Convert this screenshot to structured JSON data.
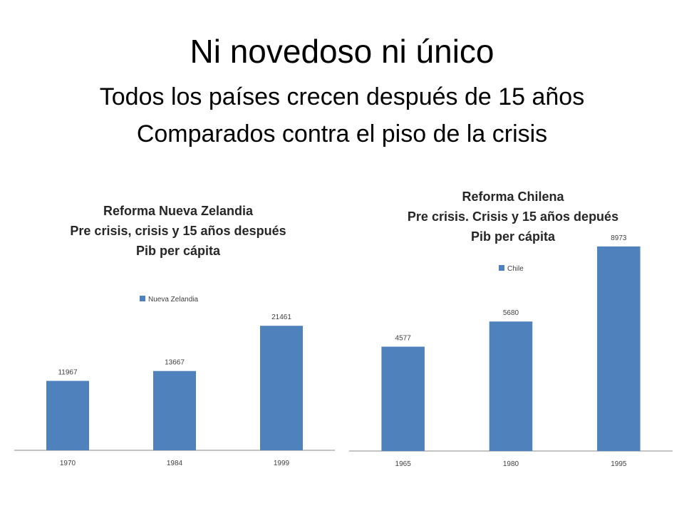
{
  "slide": {
    "title": "Ni novedoso ni único",
    "subtitle_lines": [
      "Todos los países crecen después de 15 años",
      "Comparados contra el piso de la crisis"
    ]
  },
  "colors": {
    "bar": "#4F81BD",
    "axis": "#888888",
    "text": "#404040"
  },
  "chart_data": [
    {
      "type": "bar",
      "title_lines": [
        "Reforma Nueva Zelandia",
        "Pre crisis, crisis y 15 años después",
        "Pib per cápita"
      ],
      "categories": [
        "1970",
        "1984",
        "1999"
      ],
      "series": [
        {
          "name": "Nueva Zelandia",
          "values": [
            11967,
            13667,
            21461
          ]
        }
      ],
      "xlabel": "",
      "ylabel": "",
      "ylim": [
        0,
        35000
      ],
      "grid": false,
      "legend": "top-center",
      "data_labels": true
    },
    {
      "type": "bar",
      "title_lines": [
        "Reforma Chilena",
        "Pre crisis. Crisis y 15 años depués",
        "Pib per cápita"
      ],
      "categories": [
        "1965",
        "1980",
        "1995"
      ],
      "series": [
        {
          "name": "Chile",
          "values": [
            4577,
            5680,
            8973
          ]
        }
      ],
      "xlabel": "",
      "ylabel": "",
      "ylim": [
        0,
        11000
      ],
      "grid": false,
      "legend": "top-center",
      "data_labels": true
    }
  ]
}
